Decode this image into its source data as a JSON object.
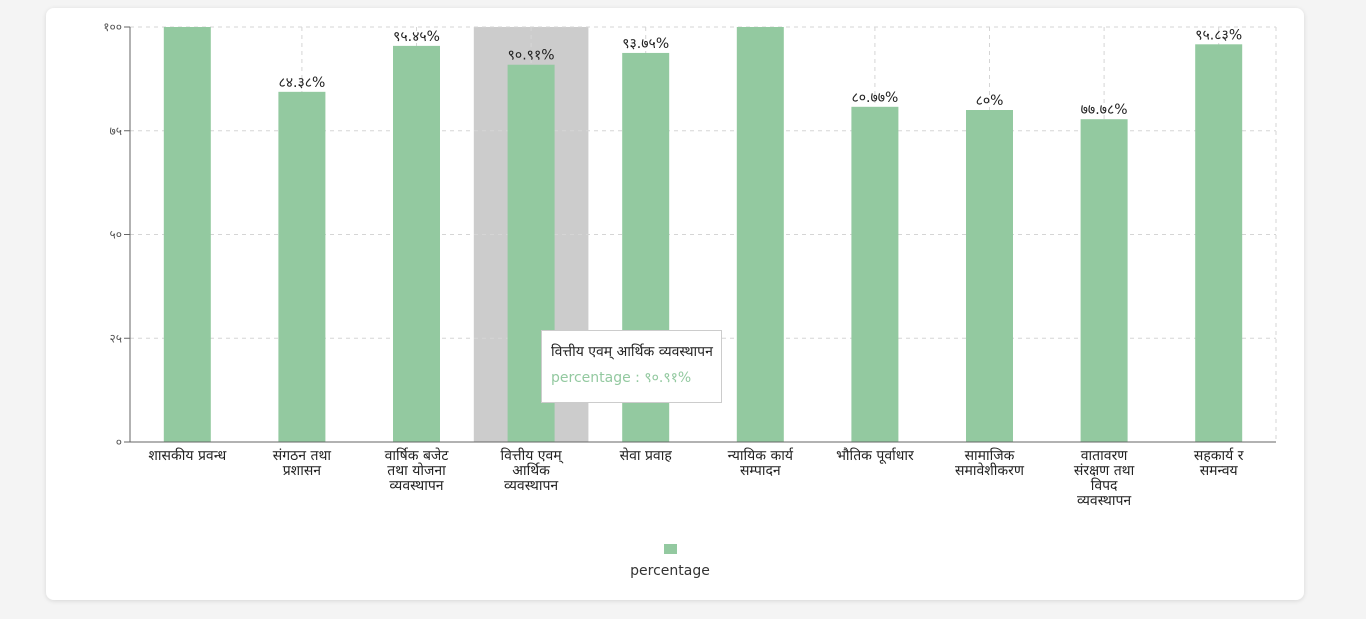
{
  "chart_data": {
    "type": "bar",
    "categories": [
      "शासकीय प्रवन्ध",
      "संगठन तथा प्रशासन",
      "वार्षिक बजेट तथा योजना व्यवस्थापन",
      "वित्तीय एवम् आर्थिक व्यवस्थापन",
      "सेवा प्रवाह",
      "न्यायिक कार्य सम्पादन",
      "भौतिक पूर्वाधार",
      "सामाजिक समावेशीकरण",
      "वातावरण संरक्षण तथा विपद व्यवस्थापन",
      "सहकार्य र समन्वय"
    ],
    "series": [
      {
        "name": "percentage",
        "color": "#93c9a0",
        "values": [
          100,
          84.38,
          95.45,
          90.91,
          93.75,
          100,
          80.77,
          80,
          77.78,
          95.83
        ],
        "value_labels": [
          null,
          "८४.३८%",
          "९५.४५%",
          "९०.९१%",
          "९३.७५%",
          null,
          "८०.७७%",
          "८०%",
          "७७.७८%",
          "९५.८३%"
        ]
      }
    ],
    "ylim": [
      0,
      100
    ],
    "yticks": [
      {
        "value": 0,
        "label": "०"
      },
      {
        "value": 25,
        "label": "२५"
      },
      {
        "value": 50,
        "label": "५०"
      },
      {
        "value": 75,
        "label": "७५"
      },
      {
        "value": 100,
        "label": "१००"
      }
    ],
    "grid": true,
    "legend": "bottom",
    "tooltip": {
      "category_index": 3,
      "title": "वित्तीय एवम् आर्थिक व्यवस्थापन",
      "text": "percentage : ९०.९१%",
      "highlight_color": "#cccccc"
    }
  }
}
